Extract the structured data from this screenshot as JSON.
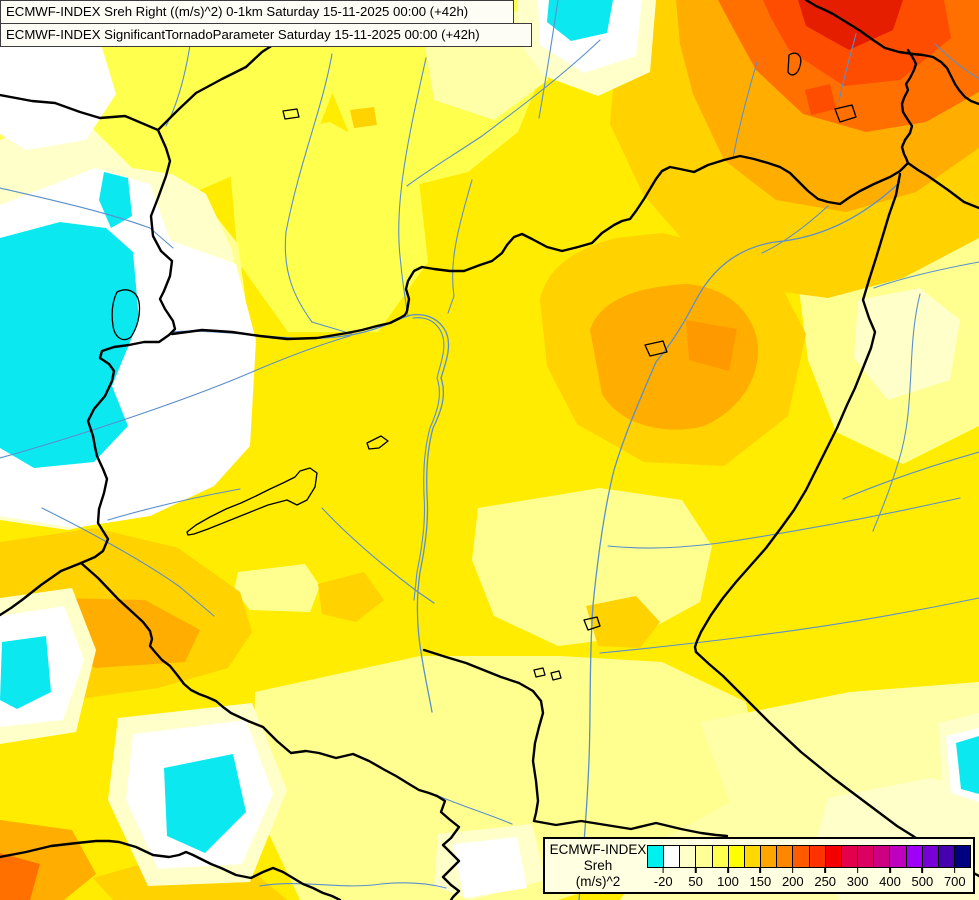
{
  "header": {
    "line1": "ECMWF-INDEX Sreh Right ((m/s)^2) 0-1km Saturday 15-11-2025 00:00 (+42h)",
    "line2": "ECMWF-INDEX SignificantTornadoParameter Saturday 15-11-2025 00:00 (+42h)"
  },
  "legend": {
    "product": "ECMWF-INDEX",
    "parameter": "Sreh",
    "units": "(m/s)^2",
    "colorbar": {
      "colors": [
        "#00F0F0",
        "#FFFFFF",
        "#FFFFC8",
        "#FFFF96",
        "#FFFF50",
        "#FFFF00",
        "#FFD800",
        "#FFA500",
        "#FF8700",
        "#FF5A00",
        "#FF3200",
        "#F50000",
        "#E4004B",
        "#DC0060",
        "#CD0082",
        "#BE00BE",
        "#A000F5",
        "#7800D7",
        "#4600AF",
        "#000082"
      ],
      "ticks": [
        {
          "label": "-20",
          "boundary": 1
        },
        {
          "label": "50",
          "boundary": 3
        },
        {
          "label": "100",
          "boundary": 5
        },
        {
          "label": "150",
          "boundary": 7
        },
        {
          "label": "200",
          "boundary": 9
        },
        {
          "label": "250",
          "boundary": 11
        },
        {
          "label": "300",
          "boundary": 13
        },
        {
          "label": "400",
          "boundary": 15
        },
        {
          "label": "500",
          "boundary": 17
        },
        {
          "label": "700",
          "boundary": 19
        }
      ]
    }
  },
  "map": {
    "colors": {
      "base": "#FFEC00",
      "light_yellow": "#FFFF4E",
      "pale_yellow": "#FFFF90",
      "pale_yellow2": "#FFFFA8",
      "cream": "#FFFFC9",
      "white": "#FFFFFF",
      "cyan": "#0CE8F0",
      "gold": "#FFD200",
      "amber": "#FFAE00",
      "orange": "#FF9900",
      "deep_orange": "#FF7000",
      "orange_red": "#FF4D00",
      "red": "#E61E00",
      "border": "#000000",
      "river": "#5A8FCC"
    }
  }
}
